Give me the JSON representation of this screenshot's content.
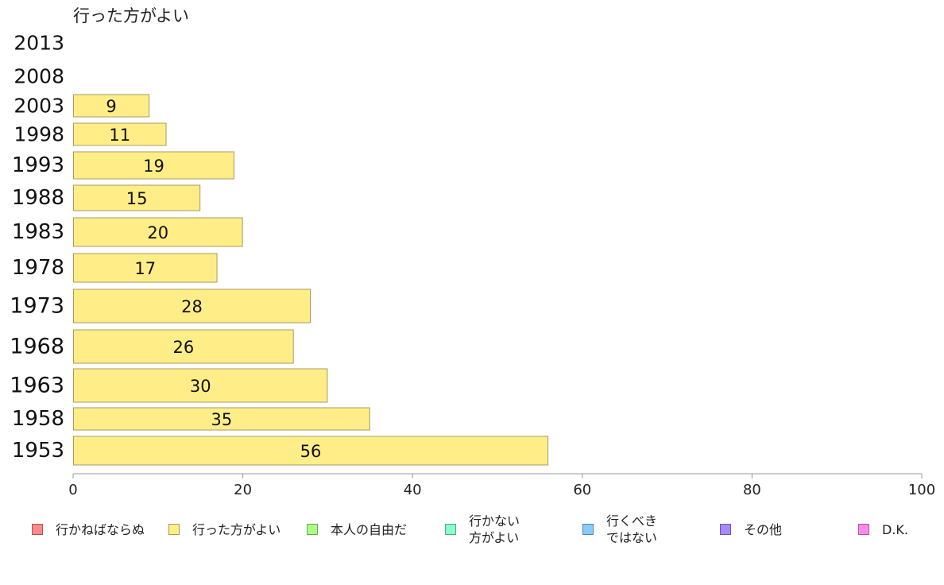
{
  "chart_data": {
    "type": "bar",
    "orientation": "horizontal",
    "title": "行った方がよい",
    "categories": [
      "2013",
      "2008",
      "2003",
      "1998",
      "1993",
      "1988",
      "1983",
      "1978",
      "1973",
      "1968",
      "1963",
      "1958",
      "1953"
    ],
    "series": [
      {
        "name": "行った方がよい",
        "color": "#ffee88",
        "values": [
          null,
          null,
          9,
          11,
          19,
          15,
          20,
          17,
          28,
          26,
          30,
          35,
          56
        ]
      }
    ],
    "xlim": [
      0,
      100
    ],
    "xticks": [
      "0",
      "20",
      "40",
      "60",
      "80",
      "100"
    ],
    "grid": false,
    "legend_placement": "bottom"
  },
  "legend": [
    {
      "label": "行かねばならぬ",
      "color": "#ff8888"
    },
    {
      "label": "行った方がよい",
      "color": "#ffee88"
    },
    {
      "label": "本人の自由だ",
      "color": "#aaff88"
    },
    {
      "label": "行かない\n方がよい",
      "color": "#88ffcc"
    },
    {
      "label": "行くべき\nではない",
      "color": "#88ccff"
    },
    {
      "label": "その他",
      "color": "#aa88ff"
    },
    {
      "label": "D.K.",
      "color": "#ff88ee"
    }
  ]
}
